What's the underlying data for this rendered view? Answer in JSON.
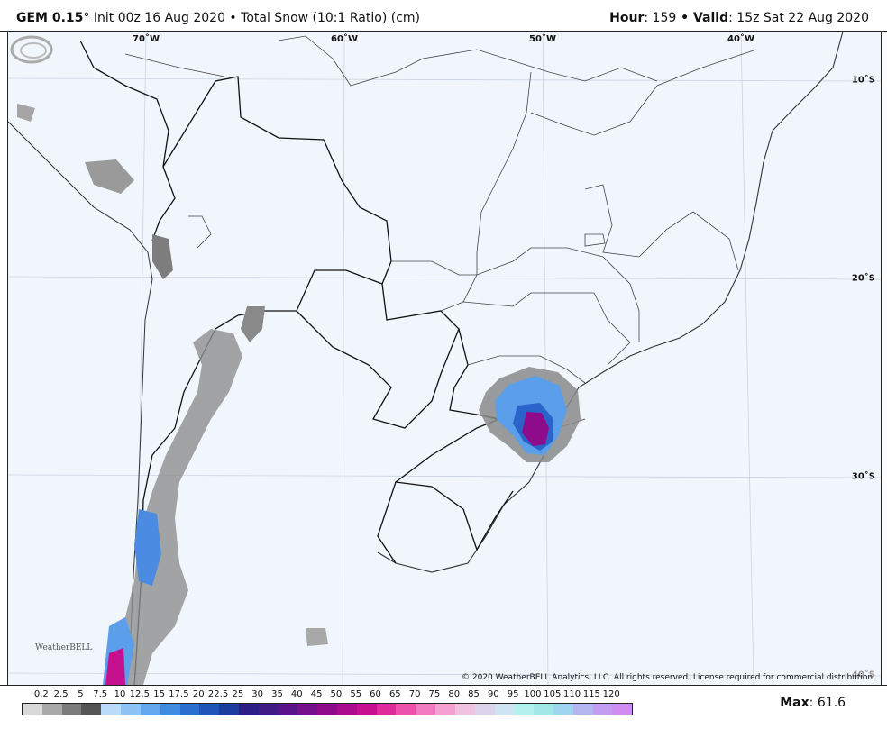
{
  "header": {
    "model": "GEM 0.15",
    "degree": "°",
    "init": " Init 00z 16 Aug 2020",
    "bullet": " • ",
    "product": "Total Snow (10:1 Ratio) (cm)",
    "hour_label": "Hour",
    "hour_value": ": 159",
    "valid_label": " • Valid",
    "valid_value": ": 15z Sat 22 Aug 2020"
  },
  "map": {
    "lon_labels": [
      "70˚W",
      "60˚W",
      "50˚W",
      "40˚W"
    ],
    "lat_labels": [
      "10˚S",
      "20˚S",
      "30˚S",
      "40˚S"
    ],
    "copyright": "© 2020 WeatherBELL Analytics, LLC. All rights reserved. License required for commercial distribution.",
    "logo_text": "WeatherBELL"
  },
  "legend": {
    "ticks": [
      "0.2",
      "2.5",
      "5",
      "7.5",
      "10",
      "12.5",
      "15",
      "17.5",
      "20",
      "22.5",
      "25",
      "30",
      "35",
      "40",
      "45",
      "50",
      "55",
      "60",
      "65",
      "70",
      "75",
      "80",
      "85",
      "90",
      "95",
      "100",
      "105",
      "110",
      "115",
      "120"
    ],
    "colors": [
      "#d9d9d9",
      "#a9a9a9",
      "#7c7c7c",
      "#555555",
      "#b9dcfb",
      "#8fc3f6",
      "#63a8ef",
      "#3f8be2",
      "#2a6fd0",
      "#1f54b8",
      "#1a3d9f",
      "#2b1f86",
      "#411a86",
      "#5a138a",
      "#74108c",
      "#8e0c8c",
      "#ab0c8e",
      "#c61090",
      "#de2a9a",
      "#ec52ad",
      "#f27bc1",
      "#f4a1d2",
      "#f0c2e0",
      "#ddd4ec",
      "#cfe4f3",
      "#b4f0ee",
      "#a2e7e8",
      "#9fd6ef",
      "#b4b7ef",
      "#c49cf1",
      "#d18cf0"
    ],
    "max_label": "Max",
    "max_value": ": 61.6"
  }
}
